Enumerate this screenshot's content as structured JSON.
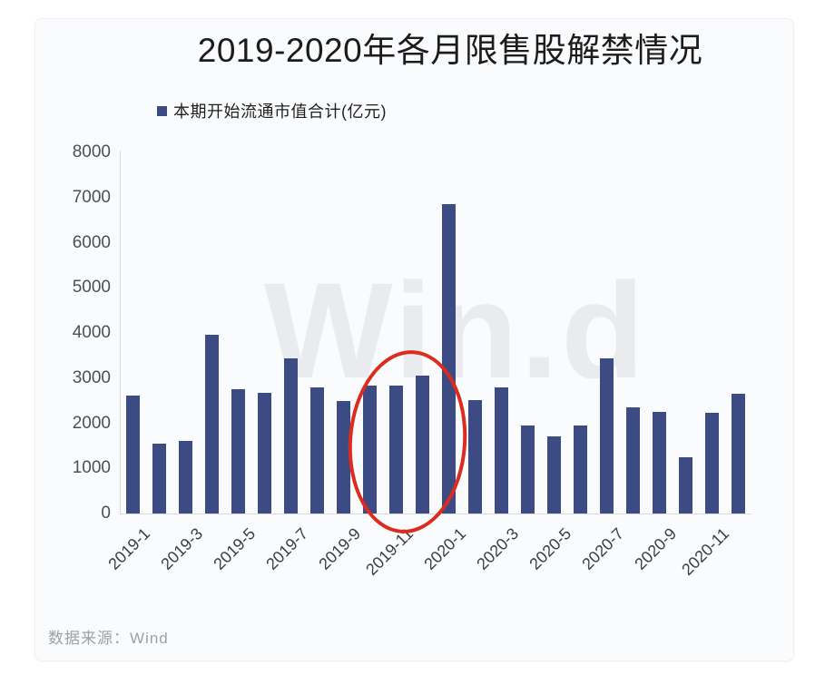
{
  "chart": {
    "title": "2019-2020年各月限售股解禁情况",
    "legend": {
      "label": "本期开始流通市值合计(亿元)",
      "swatch_color": "#3C4B84"
    },
    "watermark": "Win.d",
    "source": "数据来源：Wind",
    "annotation": {
      "type": "ellipse",
      "color": "#dc2b1f",
      "highlights": "2019-11 and 2019-12 bars"
    }
  },
  "chart_data": {
    "type": "bar",
    "title": "2019-2020年各月限售股解禁情况",
    "series_name": "本期开始流通市值合计(亿元)",
    "categories": [
      "2019-1",
      "2019-2",
      "2019-3",
      "2019-4",
      "2019-5",
      "2019-6",
      "2019-7",
      "2019-8",
      "2019-9",
      "2019-10",
      "2019-11",
      "2019-12",
      "2020-1",
      "2020-2",
      "2020-3",
      "2020-4",
      "2020-5",
      "2020-6",
      "2020-7",
      "2020-8",
      "2020-9",
      "2020-10",
      "2020-11",
      "2020-12"
    ],
    "values": [
      2620,
      1550,
      1600,
      3950,
      2750,
      2680,
      3430,
      2800,
      2500,
      2840,
      2840,
      3060,
      6850,
      2520,
      2800,
      1950,
      1700,
      1950,
      3430,
      2360,
      2250,
      1250,
      2240,
      2660
    ],
    "x_tick_labels": [
      "2019-1",
      "2019-3",
      "2019-5",
      "2019-7",
      "2019-9",
      "2019-11",
      "2020-1",
      "2020-3",
      "2020-5",
      "2020-7",
      "2020-9",
      "2020-11"
    ],
    "x_tick_every": 2,
    "y_ticks": [
      0,
      1000,
      2000,
      3000,
      4000,
      5000,
      6000,
      7000,
      8000
    ],
    "ylim": [
      0,
      8000
    ],
    "xlabel": "",
    "ylabel": "",
    "bar_color": "#3C4B84",
    "grid": false,
    "legend_position": "top-left",
    "x_label_rotation": 45
  }
}
